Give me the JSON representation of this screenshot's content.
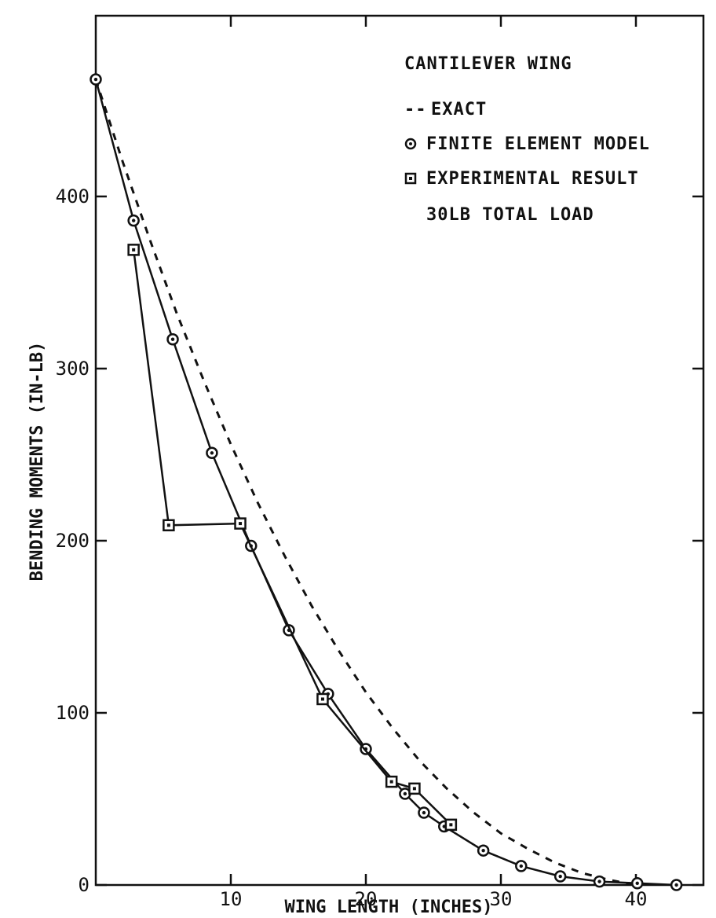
{
  "chart_data": {
    "type": "line",
    "xlabel": "WING LENGTH (INCHES)",
    "ylabel": "BENDING MOMENTS (IN-LB)",
    "xlim": [
      0,
      45
    ],
    "ylim": [
      0,
      505
    ],
    "x_ticks": [
      10,
      20,
      30,
      40
    ],
    "y_ticks": [
      0,
      100,
      200,
      300,
      400
    ],
    "grid": false,
    "legend_position": "top-right",
    "legend": {
      "title": "CANTILEVER WING",
      "entries": [
        {
          "label": "EXACT",
          "marker": "dash",
          "prefix": "--"
        },
        {
          "label": "FINITE ELEMENT MODEL",
          "marker": "circle"
        },
        {
          "label": "EXPERIMENTAL RESULT",
          "marker": "square"
        }
      ],
      "note": "30LB TOTAL LOAD"
    },
    "series": [
      {
        "name": "EXACT",
        "style": "dashed",
        "x": [
          0,
          2,
          4,
          6,
          8,
          10,
          12,
          14,
          16,
          18,
          20,
          22,
          24,
          26,
          28,
          30,
          32,
          34,
          36,
          38,
          40
        ],
        "y": [
          468,
          420,
          375,
          332,
          293,
          256,
          222,
          191,
          162,
          136,
          112,
          91,
          72,
          56,
          42,
          30,
          21,
          13,
          7,
          3,
          0
        ]
      },
      {
        "name": "FINITE ELEMENT MODEL",
        "style": "solid",
        "marker": "circle",
        "x": [
          0,
          2.8,
          5.7,
          8.6,
          11.5,
          14.3,
          17.2,
          20.0,
          22.9,
          24.3,
          25.8,
          28.7,
          31.5,
          34.4,
          37.3,
          40.1,
          43.0
        ],
        "y": [
          468,
          386,
          317,
          251,
          197,
          148,
          111,
          79,
          53,
          42,
          34,
          20,
          11,
          5,
          2,
          1,
          0
        ]
      },
      {
        "name": "EXPERIMENTAL RESULT",
        "style": "solid",
        "marker": "square",
        "x": [
          2.8,
          5.4,
          10.7,
          16.8,
          21.9,
          23.6,
          26.3
        ],
        "y": [
          369,
          209,
          210,
          108,
          60,
          56,
          35
        ]
      }
    ]
  }
}
